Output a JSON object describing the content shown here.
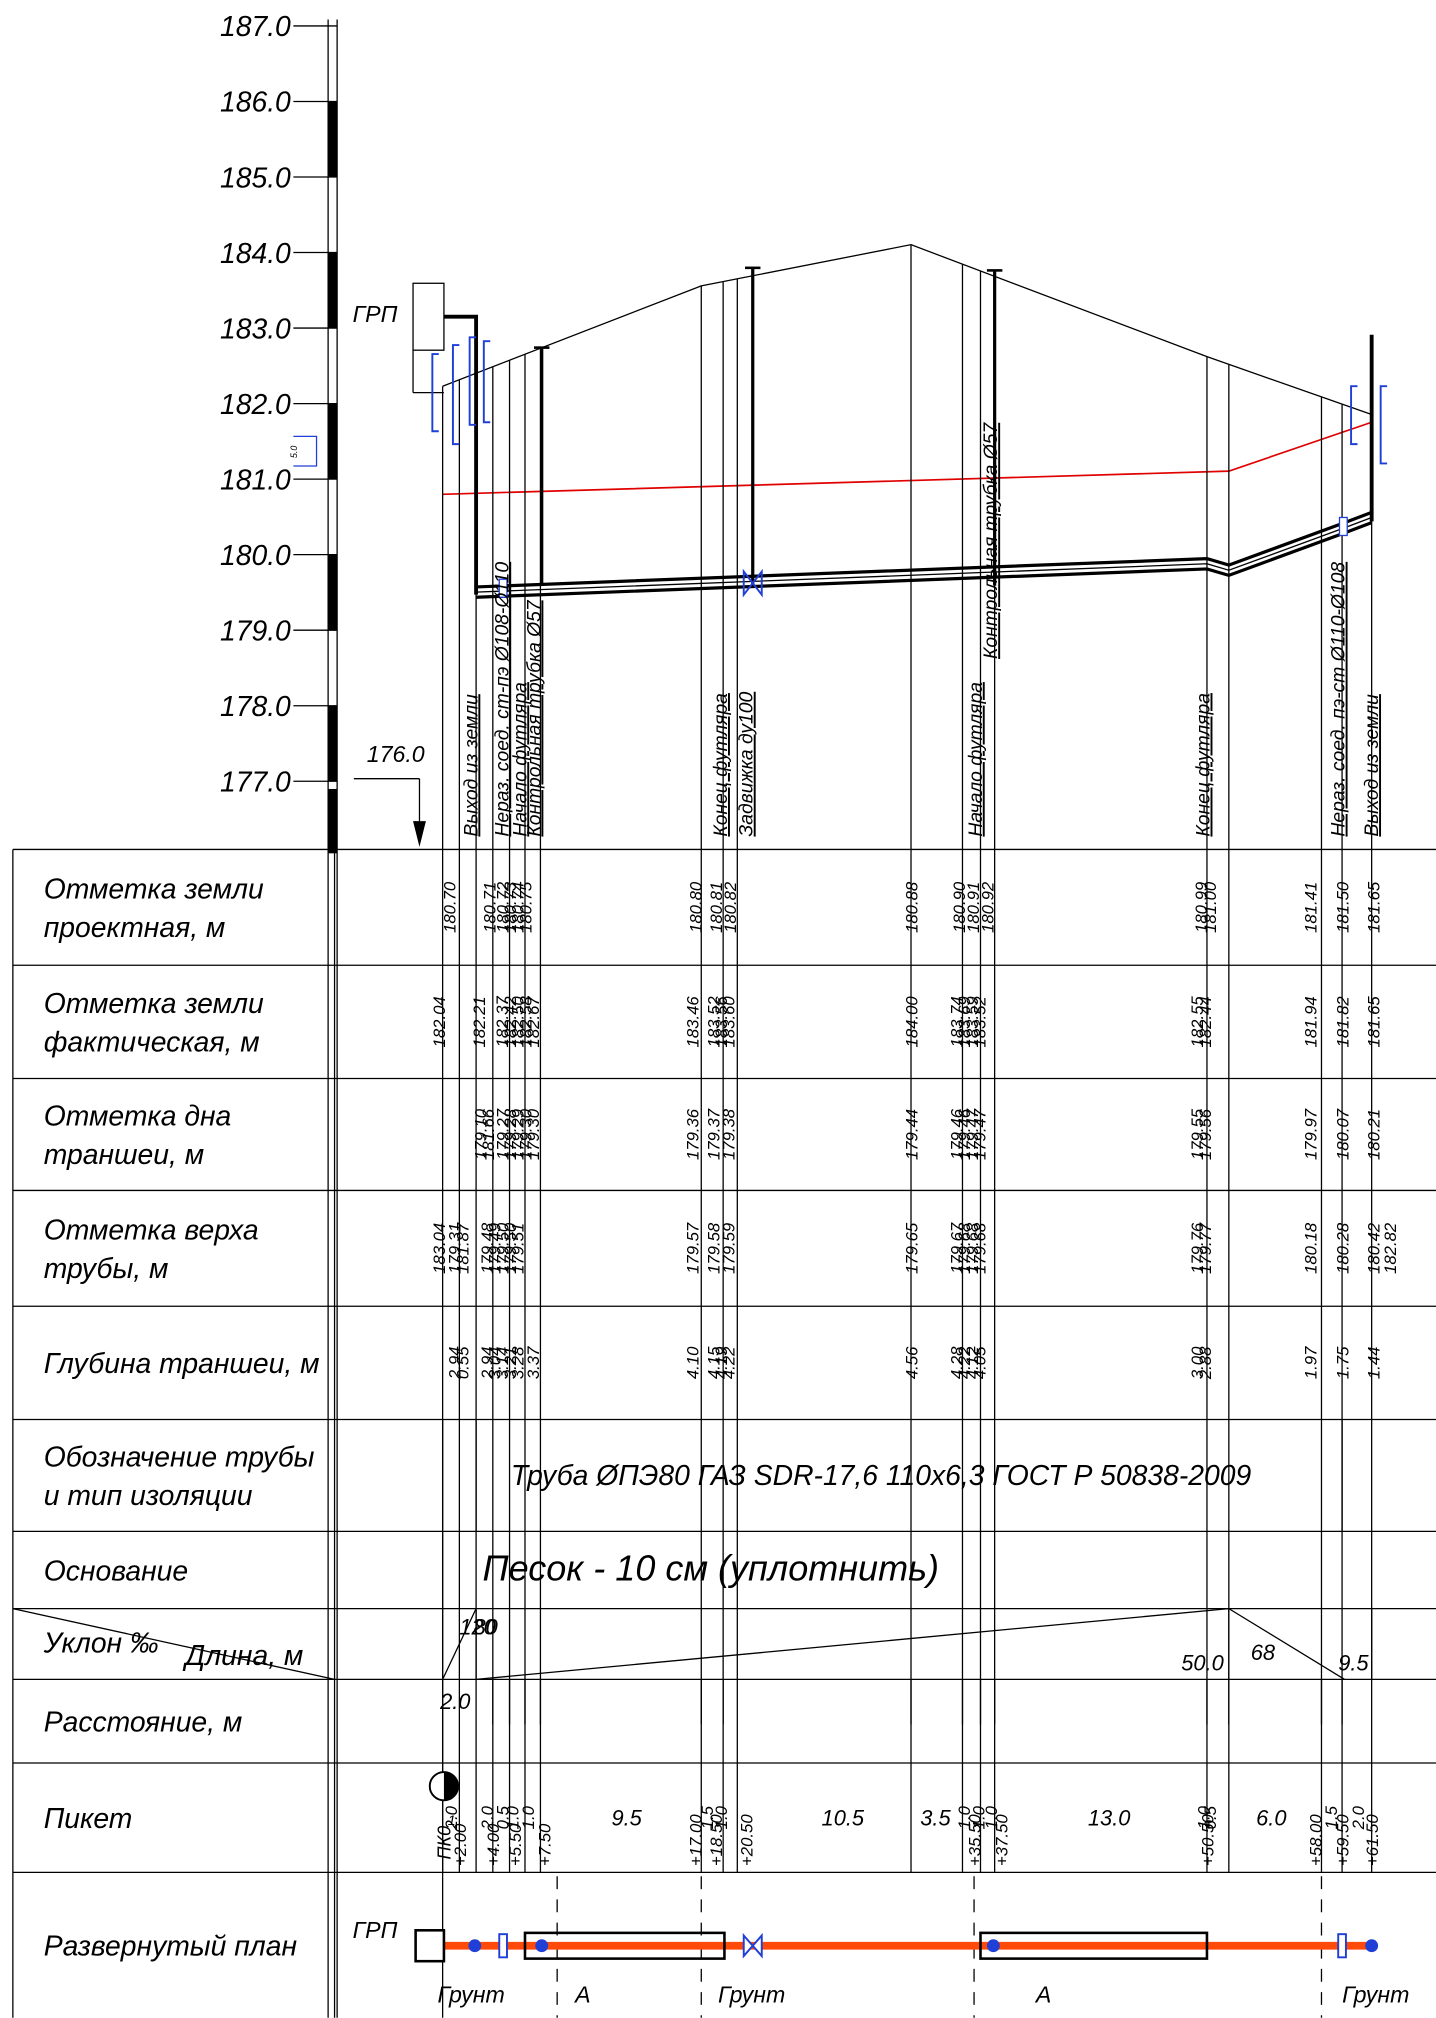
{
  "scale": {
    "ticks": [
      "187.0",
      "186.0",
      "185.0",
      "184.0",
      "183.0",
      "182.0",
      "181.0",
      "180.0",
      "179.0",
      "178.0",
      "177.0"
    ],
    "datum": "176.0",
    "note": "5.0"
  },
  "profile": {
    "grp": "ГРП",
    "labels": [
      "Выход из земли",
      "Нераз. соед. ст-пэ Ø108-Ø110",
      "Начало футляра",
      "Контрольная трубка Ø57",
      "Конец футляра",
      "Задвижка ду100",
      "Начало футляра",
      "Контрольная трубка Ø57",
      "Конец футляра",
      "Нераз. соед. пэ-ст Ø110-Ø108",
      "Выход из земли"
    ]
  },
  "table": {
    "rows": [
      {
        "label": [
          "Отметка земли",
          " проектная, м"
        ],
        "values": [
          "180.70",
          "180.71",
          "180.72",
          "180.73",
          "180.74",
          "180.75",
          "180.80",
          "180.81",
          "180.82",
          "180.88",
          "180.90",
          "180.91",
          "180.92",
          "180.99",
          "181.00",
          "181.41",
          "181.50",
          "181.65"
        ]
      },
      {
        "label": [
          "Отметка земли",
          " фактическая, м"
        ],
        "values": [
          "182.04",
          "182.21",
          "182.37",
          "182.42",
          "182.50",
          "182.58",
          "182.67",
          "183.46",
          "183.52",
          "183.56",
          "183.60",
          "184.00",
          "183.74",
          "183.69",
          "183.59",
          "183.52",
          "182.55",
          "182.44",
          "181.94",
          "181.82",
          "181.65"
        ]
      },
      {
        "label": [
          "Отметка дна",
          " траншеи, м"
        ],
        "values": [
          "179.10",
          "181.66",
          "179.27",
          "179.28",
          "179.29",
          "179.30",
          "179.30",
          "179.36",
          "179.37",
          "179.38",
          "179.44",
          "179.46",
          "179.46",
          "179.47",
          "179.47",
          "179.55",
          "179.56",
          "179.97",
          "180.07",
          "180.21"
        ]
      },
      {
        "label": [
          "Отметка верха",
          " трубы, м"
        ],
        "values": [
          "183.04",
          "179.31",
          "181.87",
          "179.48",
          "179.49",
          "179.50",
          "179.50",
          "179.51",
          "179.57",
          "179.58",
          "179.59",
          "179.65",
          "179.67",
          "179.68",
          "179.68",
          "179.68",
          "179.76",
          "179.77",
          "180.18",
          "180.28",
          "180.42",
          "182.82"
        ]
      },
      {
        "label": [
          "Глубина траншеи, м"
        ],
        "values": [
          "2.94",
          "0.55",
          "2.94",
          "3.04",
          "3.14",
          "3.21",
          "3.28",
          "3.37",
          "4.10",
          "4.15",
          "4.19",
          "4.22",
          "4.56",
          "4.28",
          "4.22",
          "4.12",
          "4.05",
          "3.00",
          "2.88",
          "1.97",
          "1.75",
          "1.44"
        ]
      },
      {
        "label": [
          "Обозначение трубы",
          "и тип изоляции"
        ],
        "text": "Труба ØПЭ80 ГАЗ SDR-17,6 110x6,3 ГОСТ Р 50838-2009"
      },
      {
        "label": [
          "Основание"
        ],
        "text": "Песок - 10 см (уплотнить)"
      },
      {
        "label": [
          "Уклон ‰",
          "Длина, м"
        ],
        "slopes": [
          "120",
          "80",
          "68"
        ],
        "lengths": [
          "2.0",
          "50.0",
          "9.5"
        ]
      },
      {
        "label": [
          "Расстояние, м"
        ],
        "values": [
          "2.0",
          "2.0",
          "0.5",
          "1.0",
          "1.0",
          "9.5",
          "1.5",
          "1.0",
          "10.5",
          "3.5",
          "1.0",
          "1.0",
          "1.0",
          "13.0",
          "1.0",
          "0.5",
          "6.0",
          "1.5",
          "2.0"
        ]
      },
      {
        "label": [
          "Пикет"
        ],
        "station": "ПК0",
        "index": "1",
        "values": [
          "+2.00",
          "+4.00",
          "+5.50",
          "+7.50",
          "+17.00",
          "+18.50",
          "+20.50",
          "+35.50",
          "+37.50",
          "+50.50",
          "+58.00",
          "+59.50",
          "+61.50"
        ]
      },
      {
        "label": [
          "Развернутый план"
        ],
        "grp": "ГРП",
        "segments": [
          "Грунт",
          "А",
          "Грунт",
          "А",
          "Грунт"
        ]
      }
    ]
  }
}
